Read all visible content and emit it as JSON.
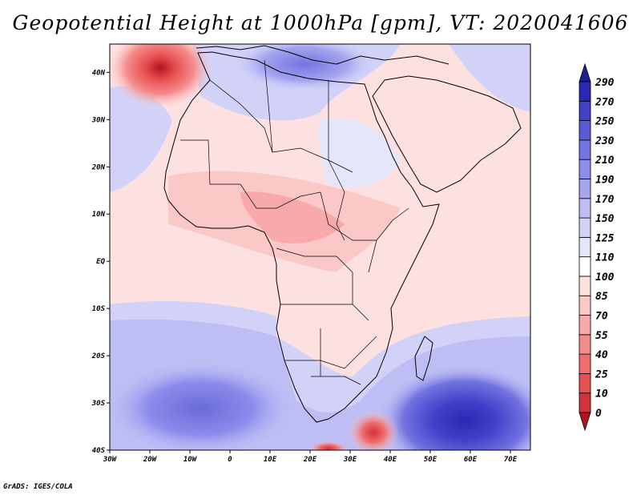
{
  "title": "Geopotential Height at 1000hPa [gpm], VT: 2020041606",
  "credit": "GrADS: IGES/COLA",
  "map": {
    "lon_range": [
      -30,
      75
    ],
    "lat_range": [
      -40,
      46
    ],
    "x_ticks": [
      "30W",
      "20W",
      "10W",
      "0",
      "10E",
      "20E",
      "30E",
      "40E",
      "50E",
      "60E",
      "70E"
    ],
    "x_tick_values": [
      -30,
      -20,
      -10,
      0,
      10,
      20,
      30,
      40,
      50,
      60,
      70
    ],
    "y_ticks": [
      "40S",
      "30S",
      "20S",
      "10S",
      "EQ",
      "10N",
      "20N",
      "30N",
      "40N"
    ],
    "y_tick_values": [
      -40,
      -30,
      -20,
      -10,
      0,
      10,
      20,
      30,
      40
    ]
  },
  "colorbar": {
    "labels": [
      "0",
      "10",
      "25",
      "40",
      "55",
      "70",
      "85",
      "100",
      "110",
      "125",
      "150",
      "170",
      "190",
      "210",
      "230",
      "250",
      "270",
      "290"
    ],
    "colors": [
      "#b4141e",
      "#d2323c",
      "#e65050",
      "#f06e6e",
      "#f58c8c",
      "#f8aaaa",
      "#fbc8c8",
      "#fde1e1",
      "#ffffff",
      "#e6e6fb",
      "#d2d2f8",
      "#bebef5",
      "#a5a5f0",
      "#8c8ceb",
      "#7373e1",
      "#5a5ad7",
      "#4141c8",
      "#2828b4",
      "#1e1e96"
    ]
  },
  "colors": {
    "land_border": "#000000",
    "frame": "#000000"
  }
}
